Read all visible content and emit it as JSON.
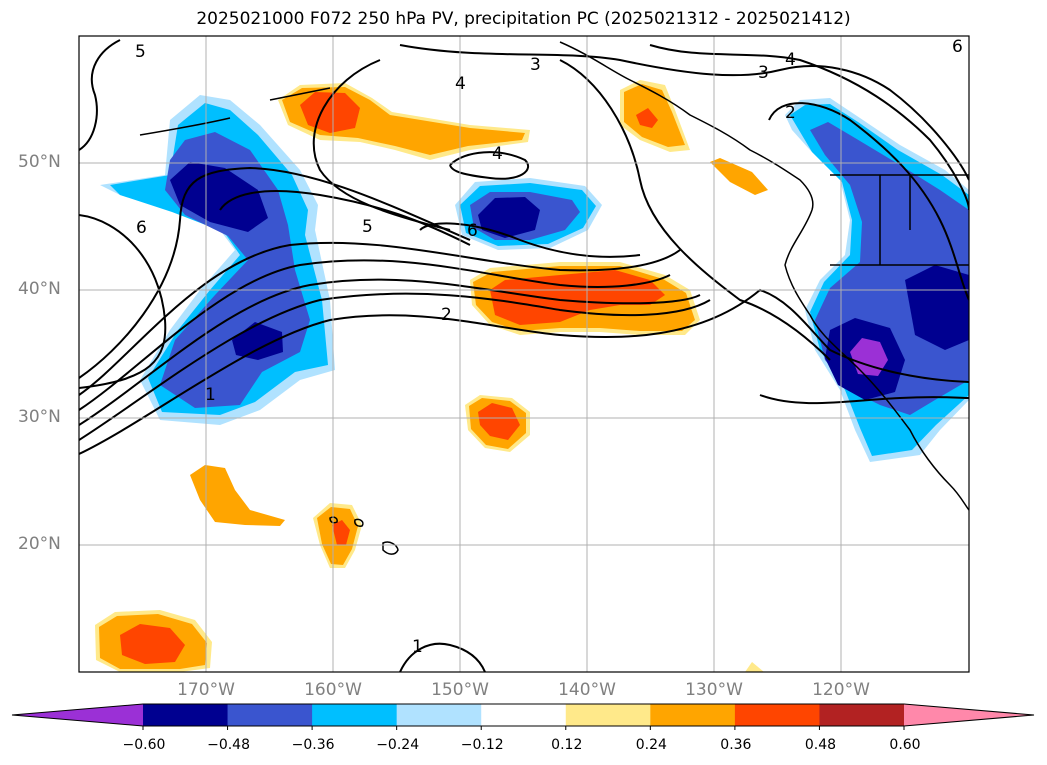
{
  "title": "2025021000 F072 250 hPa PV, precipitation PC (2025021312 - 2025021412)",
  "lat_labels": [
    "50°N",
    "40°N",
    "30°N",
    "20°N"
  ],
  "lon_labels": [
    "170°W",
    "160°W",
    "150°W",
    "140°W",
    "130°W",
    "120°W"
  ],
  "contour_labels": [
    "5",
    "3",
    "4",
    "3",
    "4",
    "2",
    "6",
    "4",
    "6",
    "5",
    "6",
    "2",
    "1",
    "1"
  ],
  "colorbar": {
    "tick_labels": [
      "−0.60",
      "−0.48",
      "−0.36",
      "−0.24",
      "−0.12",
      "0.12",
      "0.24",
      "0.36",
      "0.48",
      "0.60"
    ],
    "colors": [
      "#9b30d6",
      "#000090",
      "#3a55cf",
      "#00bfff",
      "#b0e2ff",
      "#ffffff",
      "#ffe98a",
      "#ffa500",
      "#ff4500",
      "#b22222",
      "#ff88aa"
    ]
  },
  "map_extent": {
    "lon": [
      -180,
      -110
    ],
    "lat": [
      10,
      60
    ]
  }
}
